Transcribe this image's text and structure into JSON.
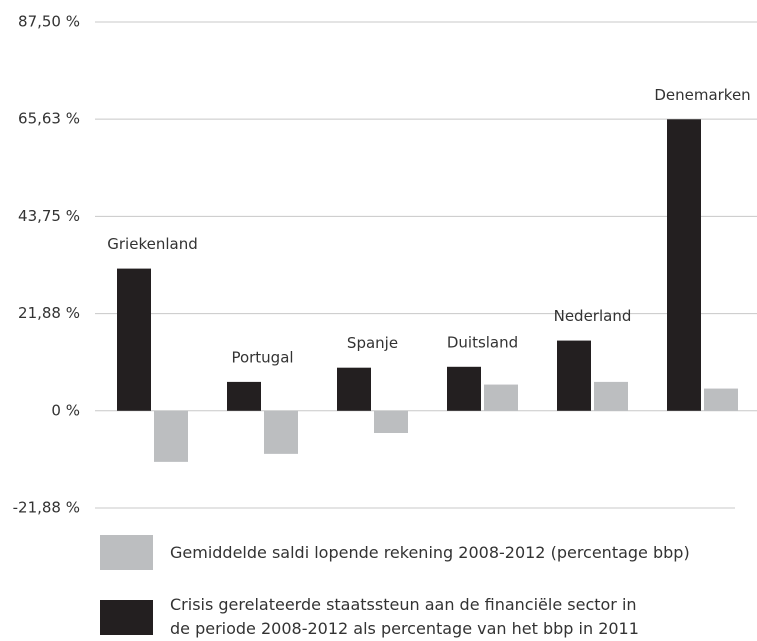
{
  "chart_data": {
    "type": "bar",
    "categories": [
      "Griekenland",
      "Portugal",
      "Spanje",
      "Duitsland",
      "Nederland",
      "Denemarken"
    ],
    "series": [
      {
        "name": "Crisis gerelateerde staatssteun aan de financiële sector in de periode 2008-2012 als percentage van het bbp in 2011",
        "color": "#231f20",
        "values": [
          32,
          6.5,
          9.7,
          9.9,
          15.8,
          65.6
        ]
      },
      {
        "name": "Gemiddelde saldi lopende rekening 2008-2012 (percentage bbp)",
        "color": "#bcbec0",
        "values": [
          -11.5,
          -9.7,
          -5,
          5.9,
          6.5,
          5
        ]
      }
    ],
    "ylim": [
      -21.88,
      87.5
    ],
    "yticks": [
      {
        "value": -21.88,
        "label": "-21,88 %"
      },
      {
        "value": 0,
        "label": "0 %"
      },
      {
        "value": 21.88,
        "label": "21,88 %"
      },
      {
        "value": 43.75,
        "label": "43,75 %"
      },
      {
        "value": 65.63,
        "label": "65,63 %"
      },
      {
        "value": 87.5,
        "label": "87,50 %"
      }
    ],
    "grid": true
  }
}
